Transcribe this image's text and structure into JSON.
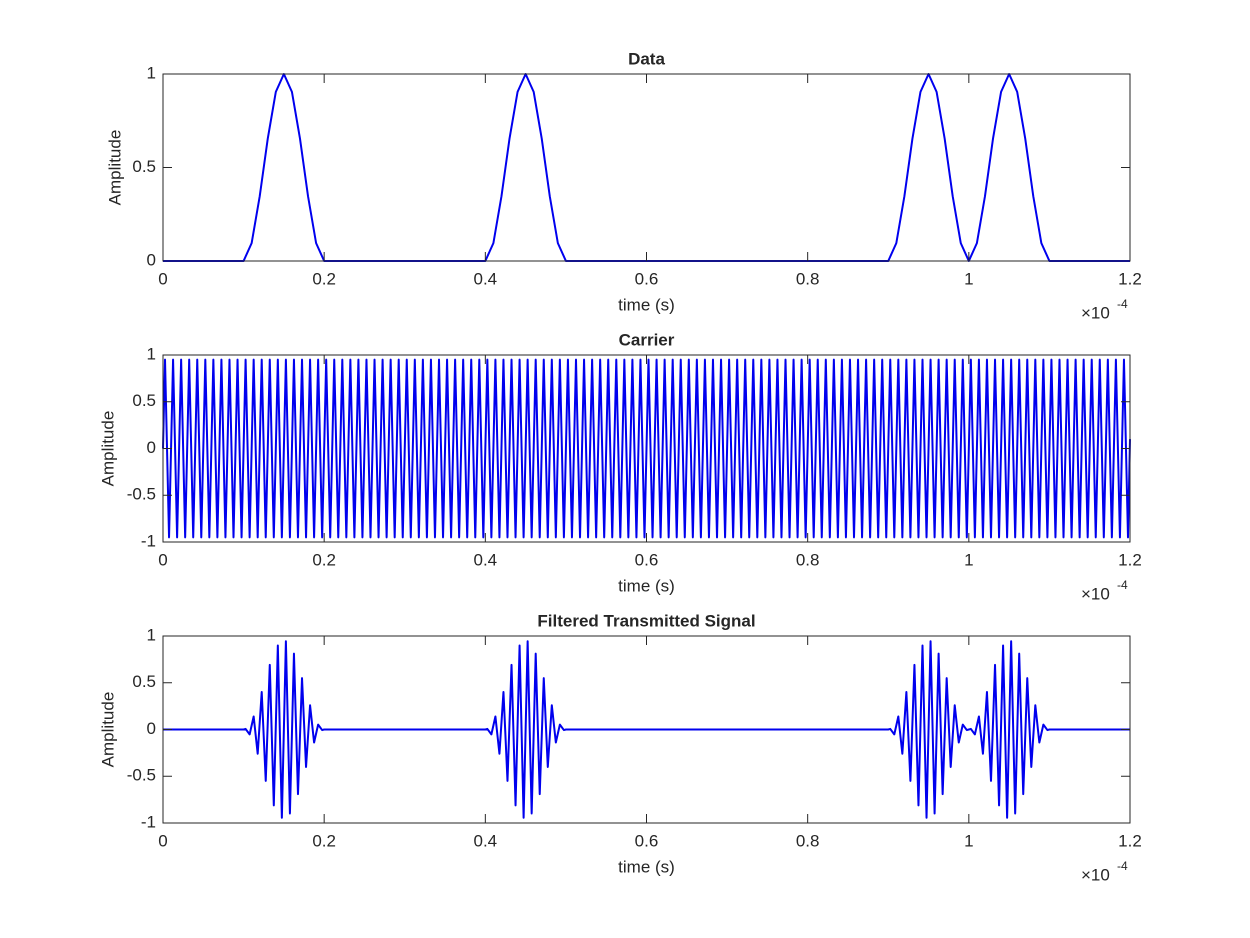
{
  "chart_data": [
    {
      "type": "line",
      "title": "Data",
      "xlabel": "time (s)",
      "ylabel": "Amplitude",
      "color": "#0000ee",
      "x_multiplier": {
        "base": "×10",
        "exponent": "-4"
      },
      "xlim": [
        0,
        1.2
      ],
      "ylim": [
        0,
        1
      ],
      "xticks": [
        0,
        0.2,
        0.4,
        0.6,
        0.8,
        1,
        1.2
      ],
      "yticks": [
        0,
        0.5,
        1
      ],
      "x": [
        0,
        0.1,
        0.11,
        0.12,
        0.13,
        0.14,
        0.15,
        0.16,
        0.17,
        0.18,
        0.19,
        0.2,
        0.4,
        0.41,
        0.42,
        0.43,
        0.44,
        0.45,
        0.46,
        0.47,
        0.48,
        0.49,
        0.5,
        0.9,
        0.91,
        0.92,
        0.93,
        0.94,
        0.95,
        0.96,
        0.97,
        0.98,
        0.99,
        1,
        1.01,
        1.02,
        1.03,
        1.04,
        1.05,
        1.06,
        1.07,
        1.08,
        1.09,
        1.1,
        1.2
      ],
      "values": [
        0,
        0,
        0.0955,
        0.3455,
        0.6545,
        0.9045,
        1,
        0.9045,
        0.6545,
        0.3455,
        0.0955,
        0,
        0,
        0.0955,
        0.3455,
        0.6545,
        0.9045,
        1,
        0.9045,
        0.6545,
        0.3455,
        0.0955,
        0,
        0,
        0.0955,
        0.3455,
        0.6545,
        0.9045,
        1,
        0.9045,
        0.6545,
        0.3455,
        0.0955,
        0,
        0.0955,
        0.3455,
        0.6545,
        0.9045,
        1,
        0.9045,
        0.6545,
        0.3455,
        0.0955,
        0,
        0
      ]
    },
    {
      "type": "line",
      "title": "Carrier",
      "xlabel": "time (s)",
      "ylabel": "Amplitude",
      "color": "#0000ee",
      "x_multiplier": {
        "base": "×10",
        "exponent": "-4"
      },
      "xlim": [
        0,
        1.2
      ],
      "ylim": [
        -1,
        1
      ],
      "xticks": [
        0,
        0.2,
        0.4,
        0.6,
        0.8,
        1,
        1.2
      ],
      "yticks": [
        -1,
        -0.5,
        0,
        0.5,
        1
      ],
      "x": [
        0,
        0.0025,
        0.0075,
        0.0125,
        0.0175,
        0.0225,
        0.0275,
        0.0325,
        0.0375,
        0.0425,
        0.0475,
        0.0525,
        0.0575,
        0.0625,
        0.0675,
        0.0725,
        0.0775,
        0.0825,
        0.0875,
        0.0925,
        0.0975,
        0.1025,
        0.1075,
        0.1125,
        0.1175,
        0.1225,
        0.1275,
        0.1325,
        0.1375,
        0.1425,
        0.1475,
        0.1525,
        0.1575,
        0.1625,
        0.1675,
        0.1725,
        0.1775,
        0.1825,
        0.1875,
        0.1925,
        0.1975,
        0.2025,
        0.2075,
        0.2125,
        0.2175,
        0.2225,
        0.2275,
        0.2325,
        0.2375,
        0.2425,
        0.2475,
        0.2525,
        0.2575,
        0.2625,
        0.2675,
        0.2725,
        0.2775,
        0.2825,
        0.2875,
        0.2925,
        0.2975,
        0.3025,
        0.3075,
        0.3125,
        0.3175,
        0.3225,
        0.3275,
        0.3325,
        0.3375,
        0.3425,
        0.3475,
        0.3525,
        0.3575,
        0.3625,
        0.3675,
        0.3725,
        0.3775,
        0.3825,
        0.3875,
        0.3925,
        0.3975,
        0.4025,
        0.4075,
        0.4125,
        0.4175,
        0.4225,
        0.4275,
        0.4325,
        0.4375,
        0.4425,
        0.4475,
        0.4525,
        0.4575,
        0.4625,
        0.4675,
        0.4725,
        0.4775,
        0.4825,
        0.4875,
        0.4925,
        0.4975,
        0.5025,
        0.5075,
        0.5125,
        0.5175,
        0.5225,
        0.5275,
        0.5325,
        0.5375,
        0.5425,
        0.5475,
        0.5525,
        0.5575,
        0.5625,
        0.5675,
        0.5725,
        0.5775,
        0.5825,
        0.5875,
        0.5925,
        0.5975,
        0.6025,
        0.6075,
        0.6125,
        0.6175,
        0.6225,
        0.6275,
        0.6325,
        0.6375,
        0.6425,
        0.6475,
        0.6525,
        0.6575,
        0.6625,
        0.6675,
        0.6725,
        0.6775,
        0.6825,
        0.6875,
        0.6925,
        0.6975,
        0.7025,
        0.7075,
        0.7125,
        0.7175,
        0.7225,
        0.7275,
        0.7325,
        0.7375,
        0.7425,
        0.7475,
        0.7525,
        0.7575,
        0.7625,
        0.7675,
        0.7725,
        0.7775,
        0.7825,
        0.7875,
        0.7925,
        0.7975,
        0.8025,
        0.8075,
        0.8125,
        0.8175,
        0.8225,
        0.8275,
        0.8325,
        0.8375,
        0.8425,
        0.8475,
        0.8525,
        0.8575,
        0.8625,
        0.8675,
        0.8725,
        0.8775,
        0.8825,
        0.8875,
        0.8925,
        0.8975,
        0.9025,
        0.9075,
        0.9125,
        0.9175,
        0.9225,
        0.9275,
        0.9325,
        0.9375,
        0.9425,
        0.9475,
        0.9525,
        0.9575,
        0.9625,
        0.9675,
        0.9725,
        0.9775,
        0.9825,
        0.9875,
        0.9925,
        0.9975,
        1.0025,
        1.0075,
        1.0125,
        1.0175,
        1.0225,
        1.0275,
        1.0325,
        1.0375,
        1.0425,
        1.0475,
        1.0525,
        1.0575,
        1.0625,
        1.0675,
        1.0725,
        1.0775,
        1.0825,
        1.0875,
        1.0925,
        1.0975,
        1.1025,
        1.1075,
        1.1125,
        1.1175,
        1.1225,
        1.1275,
        1.1325,
        1.1375,
        1.1425,
        1.1475,
        1.1525,
        1.1575,
        1.1625,
        1.1675,
        1.1725,
        1.1775,
        1.1825,
        1.1875,
        1.1925,
        1.1975,
        1.2
      ],
      "values": [
        0,
        0.95,
        -0.95,
        0.95,
        -0.95,
        0.95,
        -0.95,
        0.95,
        -0.95,
        0.95,
        -0.95,
        0.95,
        -0.95,
        0.95,
        -0.95,
        0.95,
        -0.95,
        0.95,
        -0.95,
        0.95,
        -0.95,
        0.95,
        -0.95,
        0.95,
        -0.95,
        0.95,
        -0.95,
        0.95,
        -0.95,
        0.95,
        -0.95,
        0.95,
        -0.95,
        0.95,
        -0.95,
        0.95,
        -0.95,
        0.95,
        -0.95,
        0.95,
        -0.95,
        0.95,
        -0.95,
        0.95,
        -0.95,
        0.95,
        -0.95,
        0.95,
        -0.95,
        0.95,
        -0.95,
        0.95,
        -0.95,
        0.95,
        -0.95,
        0.95,
        -0.95,
        0.95,
        -0.95,
        0.95,
        -0.95,
        0.95,
        -0.95,
        0.95,
        -0.95,
        0.95,
        -0.95,
        0.95,
        -0.95,
        0.95,
        -0.95,
        0.95,
        -0.95,
        0.95,
        -0.95,
        0.95,
        -0.95,
        0.95,
        -0.95,
        0.95,
        -0.95,
        0.95,
        -0.95,
        0.95,
        -0.95,
        0.95,
        -0.95,
        0.95,
        -0.95,
        0.95,
        -0.95,
        0.95,
        -0.95,
        0.95,
        -0.95,
        0.95,
        -0.95,
        0.95,
        -0.95,
        0.95,
        -0.95,
        0.95,
        -0.95,
        0.95,
        -0.95,
        0.95,
        -0.95,
        0.95,
        -0.95,
        0.95,
        -0.95,
        0.95,
        -0.95,
        0.95,
        -0.95,
        0.95,
        -0.95,
        0.95,
        -0.95,
        0.95,
        -0.95,
        0.95,
        -0.95,
        0.95,
        -0.95,
        0.95,
        -0.95,
        0.95,
        -0.95,
        0.95,
        -0.95,
        0.95,
        -0.95,
        0.95,
        -0.95,
        0.95,
        -0.95,
        0.95,
        -0.95,
        0.95,
        -0.95,
        0.95,
        -0.95,
        0.95,
        -0.95,
        0.95,
        -0.95,
        0.95,
        -0.95,
        0.95,
        -0.95,
        0.95,
        -0.95,
        0.95,
        -0.95,
        0.95,
        -0.95,
        0.95,
        -0.95,
        0.95,
        -0.95,
        0.95,
        -0.95,
        0.95,
        -0.95,
        0.95,
        -0.95,
        0.95,
        -0.95,
        0.95,
        -0.95,
        0.95,
        -0.95,
        0.95,
        -0.95,
        0.95,
        -0.95,
        0.95,
        -0.95,
        0.95,
        -0.95,
        0.95,
        -0.95,
        0.95,
        -0.95,
        0.95,
        -0.95,
        0.95,
        -0.95,
        0.95,
        -0.95,
        0.95,
        -0.95,
        0.95,
        -0.95,
        0.95,
        -0.95,
        0.95,
        -0.95,
        0.95,
        -0.95,
        0.95,
        -0.95,
        0.95,
        -0.95,
        0.95,
        -0.95,
        0.95,
        -0.95,
        0.95,
        -0.95,
        0.95,
        -0.95,
        0.95,
        -0.95,
        0.95,
        -0.95,
        0.95,
        -0.95,
        0.95,
        -0.95,
        0.95,
        -0.95,
        0.95,
        -0.95,
        0.95,
        -0.95,
        0.95,
        -0.95,
        0.95,
        -0.95,
        0.95,
        -0.95,
        0.95,
        -0.95,
        0.95,
        -0.95,
        0.95,
        -0.95,
        0.95,
        -0.95,
        0.1
      ]
    },
    {
      "type": "line",
      "title": "Filtered Transmitted Signal",
      "xlabel": "time (s)",
      "ylabel": "Amplitude",
      "color": "#0000ee",
      "x_multiplier": {
        "base": "×10",
        "exponent": "-4"
      },
      "xlim": [
        0,
        1.2
      ],
      "ylim": [
        -1,
        1
      ],
      "xticks": [
        0,
        0.2,
        0.4,
        0.6,
        0.8,
        1,
        1.2
      ],
      "yticks": [
        -1,
        -0.5,
        0,
        0.5,
        1
      ],
      "x": [
        0,
        0.1,
        0.1025,
        0.1075,
        0.1125,
        0.1175,
        0.1225,
        0.1275,
        0.1325,
        0.1375,
        0.1425,
        0.1475,
        0.1525,
        0.1575,
        0.1625,
        0.1675,
        0.1725,
        0.1775,
        0.1825,
        0.1875,
        0.1925,
        0.1975,
        0.2,
        0.4,
        0.4025,
        0.4075,
        0.4125,
        0.4175,
        0.4225,
        0.4275,
        0.4325,
        0.4375,
        0.4425,
        0.4475,
        0.4525,
        0.4575,
        0.4625,
        0.4675,
        0.4725,
        0.4775,
        0.4825,
        0.4875,
        0.4925,
        0.4975,
        0.5,
        0.9,
        0.9025,
        0.9075,
        0.9125,
        0.9175,
        0.9225,
        0.9275,
        0.9325,
        0.9375,
        0.9425,
        0.9475,
        0.9525,
        0.9575,
        0.9625,
        0.9675,
        0.9725,
        0.9775,
        0.9825,
        0.9875,
        0.9925,
        0.9975,
        1,
        1.0025,
        1.0075,
        1.0125,
        1.0175,
        1.0225,
        1.0275,
        1.0325,
        1.0375,
        1.0425,
        1.0475,
        1.0525,
        1.0575,
        1.0625,
        1.0675,
        1.0725,
        1.0775,
        1.0825,
        1.0875,
        1.0925,
        1.0975,
        1.1,
        1.2
      ],
      "values": [
        0,
        0,
        0.006,
        -0.052,
        0.139,
        -0.259,
        0.401,
        -0.549,
        0.691,
        -0.811,
        0.898,
        -0.944,
        0.944,
        -0.898,
        0.811,
        -0.691,
        0.549,
        -0.401,
        0.259,
        -0.139,
        0.052,
        -0.006,
        0,
        0,
        0.006,
        -0.052,
        0.139,
        -0.259,
        0.401,
        -0.549,
        0.691,
        -0.811,
        0.898,
        -0.944,
        0.944,
        -0.898,
        0.811,
        -0.691,
        0.549,
        -0.401,
        0.259,
        -0.139,
        0.052,
        -0.006,
        0,
        0,
        0.006,
        -0.052,
        0.139,
        -0.259,
        0.401,
        -0.549,
        0.691,
        -0.811,
        0.898,
        -0.944,
        0.944,
        -0.898,
        0.811,
        -0.691,
        0.549,
        -0.401,
        0.259,
        -0.139,
        0.052,
        -0.006,
        0,
        0.006,
        -0.052,
        0.139,
        -0.259,
        0.401,
        -0.549,
        0.691,
        -0.811,
        0.898,
        -0.944,
        0.944,
        -0.898,
        0.811,
        -0.691,
        0.549,
        -0.401,
        0.259,
        -0.139,
        0.052,
        -0.006,
        0,
        0
      ]
    }
  ]
}
